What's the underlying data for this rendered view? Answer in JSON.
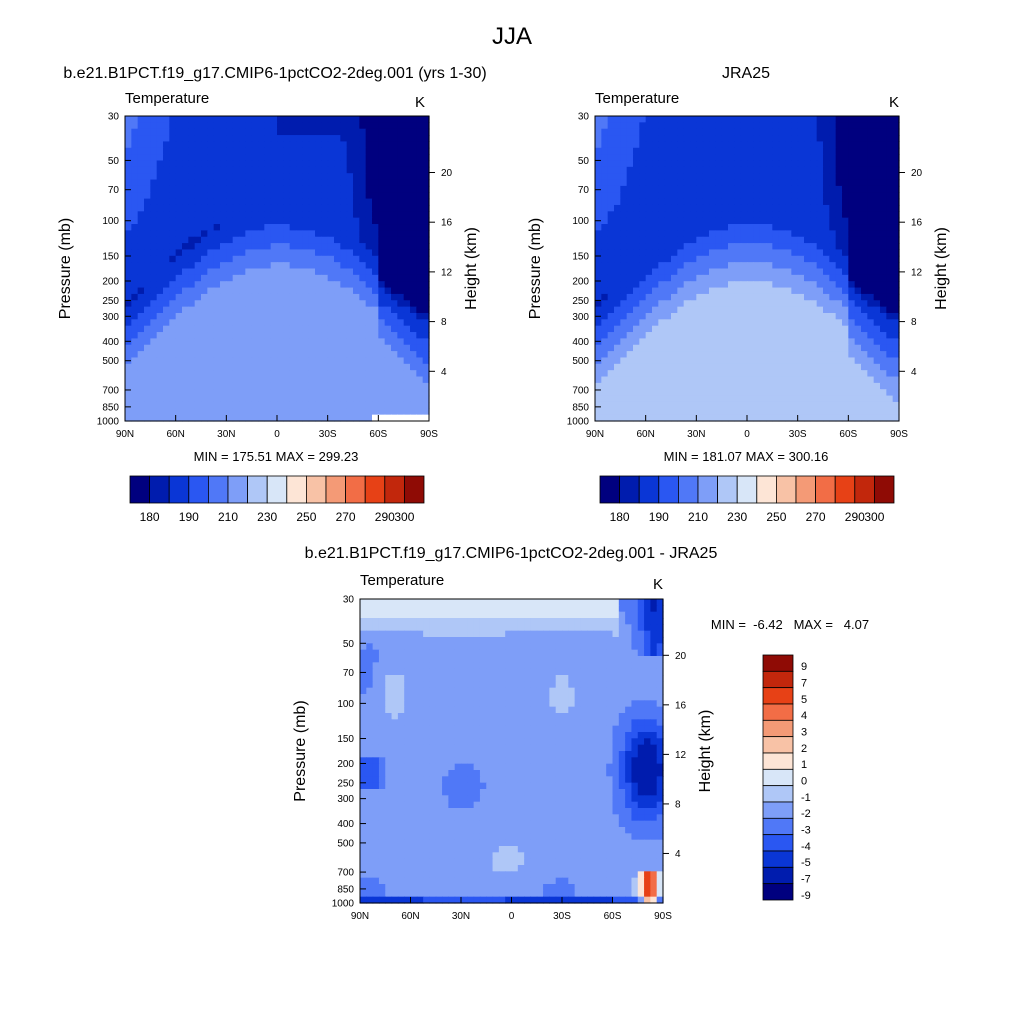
{
  "figure": {
    "title": "JJA",
    "panel_model_title": "b.e21.B1PCT.f19_g17.CMIP6-1pctCO2-2deg.001 (yrs 1-30)",
    "panel_obs_title": "JRA25",
    "panel_diff_title": "b.e21.B1PCT.f19_g17.CMIP6-1pctCO2-2deg.001 - JRA25",
    "variable": "Temperature",
    "units": "K",
    "left_axis_label": "Pressure (mb)",
    "right_axis_label": "Height (km)"
  },
  "colors": {
    "full_field_levels": [
      "#00007f",
      "#001cae",
      "#0a36d6",
      "#2a57f2",
      "#5078f7",
      "#7e9ef8",
      "#afc7f7",
      "#d8e6f8",
      "#fde5d6",
      "#f8c2a6",
      "#f49a76",
      "#f26d46",
      "#e74116",
      "#c2270c",
      "#8f0b05"
    ],
    "diff_levels": [
      "#00007f",
      "#001cae",
      "#0a36d6",
      "#2a57f2",
      "#5078f7",
      "#7e9ef8",
      "#afc7f7",
      "#d8e6f8",
      "#fde5d6",
      "#f8c2a6",
      "#f49a76",
      "#f26d46",
      "#e74116",
      "#c2270c",
      "#8f0b05"
    ]
  },
  "chart_data": [
    {
      "type": "heatmap",
      "title": "b.e21.B1PCT.f19_g17.CMIP6-1pctCO2-2deg.001 (yrs 1-30)",
      "subtitle_left": "Temperature",
      "subtitle_right": "K",
      "x_tick_labels": [
        "90N",
        "60N",
        "30N",
        "0",
        "30S",
        "60S",
        "90S"
      ],
      "x_values": [
        90,
        60,
        30,
        0,
        -30,
        -60,
        -90
      ],
      "y_tick_labels": [
        "30",
        "50",
        "70",
        "100",
        "150",
        "200",
        "250",
        "300",
        "400",
        "500",
        "700",
        "850",
        "1000"
      ],
      "y_values": [
        30,
        50,
        70,
        100,
        150,
        200,
        250,
        300,
        400,
        500,
        700,
        850,
        1000
      ],
      "y_scale": "log",
      "height_ticks": [
        4,
        8,
        12,
        16,
        20
      ],
      "stat_text": "MIN = 175.51   MAX = 299.23",
      "min": 175.51,
      "max": 299.23,
      "colorbar_labels": [
        "180",
        "190",
        "210",
        "230",
        "250",
        "270",
        "290",
        "300"
      ]
    },
    {
      "type": "heatmap",
      "title": "JRA25",
      "subtitle_left": "Temperature",
      "subtitle_right": "K",
      "x_tick_labels": [
        "90N",
        "60N",
        "30N",
        "0",
        "30S",
        "60S",
        "90S"
      ],
      "x_values": [
        90,
        60,
        30,
        0,
        -30,
        -60,
        -90
      ],
      "y_tick_labels": [
        "30",
        "50",
        "70",
        "100",
        "150",
        "200",
        "250",
        "300",
        "400",
        "500",
        "700",
        "850",
        "1000"
      ],
      "y_values": [
        30,
        50,
        70,
        100,
        150,
        200,
        250,
        300,
        400,
        500,
        700,
        850,
        1000
      ],
      "y_scale": "log",
      "height_ticks": [
        4,
        8,
        12,
        16,
        20
      ],
      "stat_text": "MIN = 181.07   MAX = 300.16",
      "min": 181.07,
      "max": 300.16,
      "colorbar_labels": [
        "180",
        "190",
        "210",
        "230",
        "250",
        "270",
        "290",
        "300"
      ]
    },
    {
      "type": "heatmap",
      "title": "b.e21.B1PCT.f19_g17.CMIP6-1pctCO2-2deg.001 - JRA25",
      "subtitle_left": "Temperature",
      "subtitle_right": "K",
      "x_tick_labels": [
        "90N",
        "60N",
        "30N",
        "0",
        "30S",
        "60S",
        "90S"
      ],
      "x_values": [
        90,
        60,
        30,
        0,
        -30,
        -60,
        -90
      ],
      "y_tick_labels": [
        "30",
        "50",
        "70",
        "100",
        "150",
        "200",
        "250",
        "300",
        "400",
        "500",
        "700",
        "850",
        "1000"
      ],
      "y_values": [
        30,
        50,
        70,
        100,
        150,
        200,
        250,
        300,
        400,
        500,
        700,
        850,
        1000
      ],
      "y_scale": "log",
      "height_ticks": [
        4,
        8,
        12,
        16,
        20
      ],
      "stat_text": "MIN =  -6.42   MAX =   4.07",
      "min": -6.42,
      "max": 4.07,
      "colorbar_labels": [
        "9",
        "7",
        "5",
        "4",
        "3",
        "2",
        "1",
        "0",
        "-1",
        "-2",
        "-3",
        "-4",
        "-5",
        "-7",
        "-9"
      ]
    }
  ]
}
